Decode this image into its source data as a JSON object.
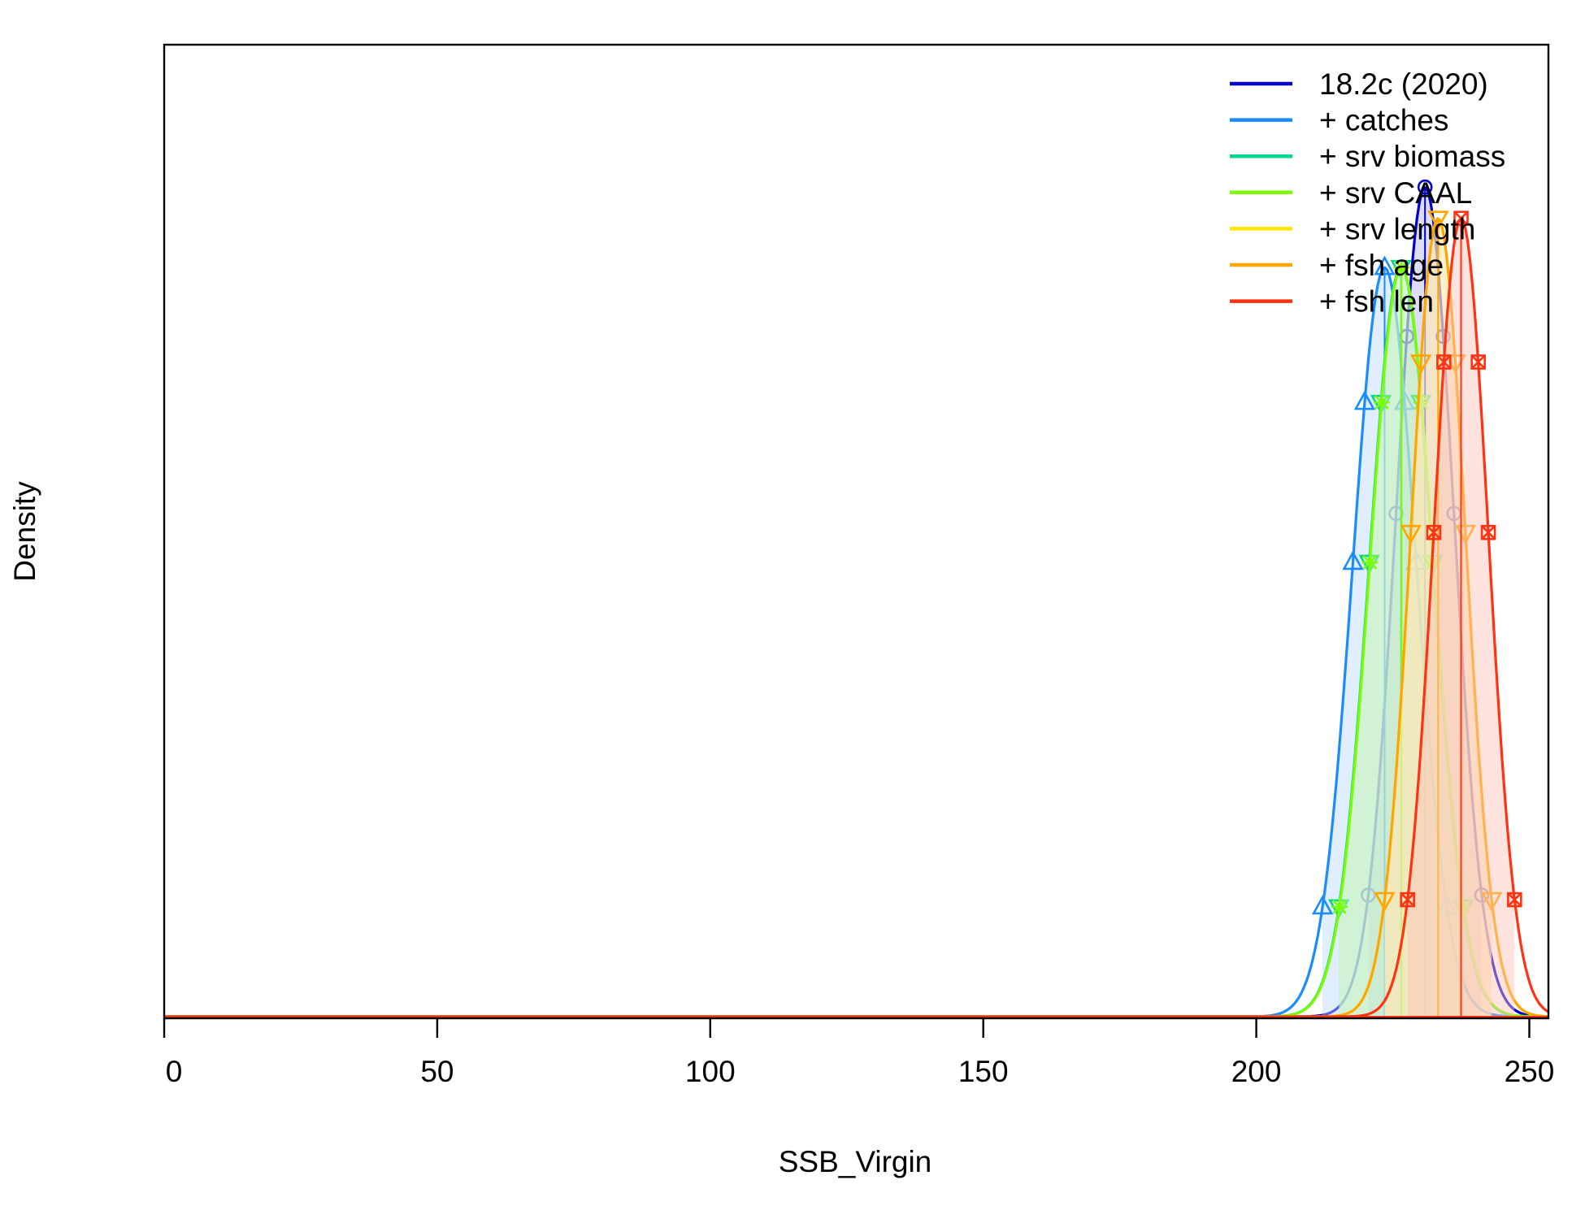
{
  "chart_data": {
    "type": "area",
    "title": "",
    "xlabel": "SSB_Virgin",
    "ylabel": "Density",
    "xlim": [
      0,
      253.5
    ],
    "x_ticks": [
      0,
      50,
      100,
      150,
      200,
      250
    ],
    "x_tick_labels": [
      "0",
      "50",
      "100",
      "150",
      "200",
      "250"
    ],
    "y_ticks_shown": false,
    "grid": false,
    "legend_position": "top-right",
    "series": [
      {
        "name": "18.2c (2020)",
        "color": "#0000CC",
        "fill": "#B3B3F0",
        "marker": "circle",
        "mean": 230.9,
        "sd": 5.3,
        "peak": 0.928,
        "ci": [
          220.5,
          241.3
        ]
      },
      {
        "name": "+ catches",
        "color": "#1A8CFF",
        "fill": "#BAD9FF",
        "marker": "triangle-up",
        "mean": 223.5,
        "sd": 5.8,
        "peak": 0.838,
        "ci": [
          212.1,
          234.9
        ]
      },
      {
        "name": "+ srv biomass",
        "color": "#00D68F",
        "fill": "#B3EDD9",
        "marker": "triangle-down",
        "mean": 226.5,
        "sd": 5.8,
        "peak": 0.838,
        "ci": [
          215.1,
          237.9
        ]
      },
      {
        "name": "+ srv CAAL",
        "color": "#7CFC00",
        "fill": "#D8F7B6",
        "marker": "star",
        "mean": 226.6,
        "sd": 5.8,
        "peak": 0.838,
        "ci": [
          215.2,
          238.0
        ]
      },
      {
        "name": "+ srv length",
        "color": "#FFE600",
        "fill": "#FFF6B3",
        "marker": "triangle-down",
        "mean": 233.3,
        "sd": 5.0,
        "peak": 0.893,
        "ci": [
          223.5,
          243.1
        ]
      },
      {
        "name": "+ fsh age",
        "color": "#FFA500",
        "fill": "#FFE0B3",
        "marker": "triangle-down",
        "mean": 233.3,
        "sd": 5.0,
        "peak": 0.893,
        "ci": [
          223.5,
          243.1
        ]
      },
      {
        "name": "+ fsh len",
        "color": "#FF3311",
        "fill": "#FFC2B8",
        "marker": "square-x",
        "mean": 237.5,
        "sd": 5.0,
        "peak": 0.893,
        "ci": [
          227.7,
          247.3
        ]
      }
    ]
  }
}
